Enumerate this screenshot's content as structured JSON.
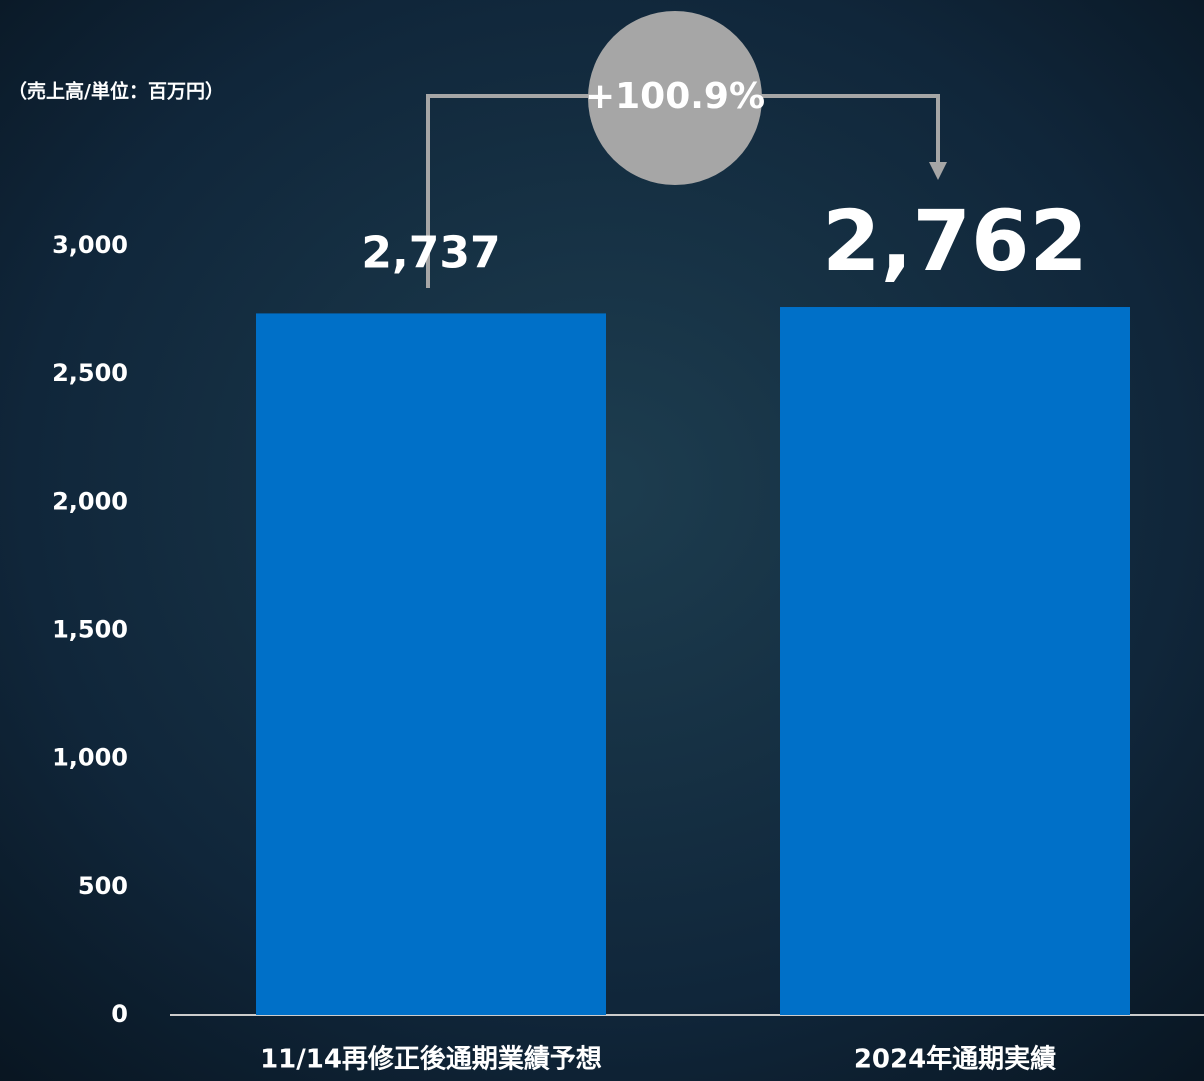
{
  "chart_data": {
    "type": "bar",
    "y_axis_label": "（売上高/単位：百万円）",
    "categories": [
      "11/14再修正後通期業績予想",
      "2024年通期実績"
    ],
    "values": [
      2737,
      2762
    ],
    "value_labels": [
      "2,737",
      "2,762"
    ],
    "color": "#0070c8",
    "ylim": [
      0,
      3000
    ],
    "yticks": [
      0,
      500,
      {
        "value": 1000,
        "label": "1,000"
      },
      {
        "value": 1500,
        "label": "1,500"
      },
      {
        "value": 2000,
        "label": "2,000"
      },
      {
        "value": 2500,
        "label": "2,500"
      },
      {
        "value": 3000,
        "label": "3,000"
      }
    ],
    "grid": false,
    "annotation": "+100.9%"
  }
}
